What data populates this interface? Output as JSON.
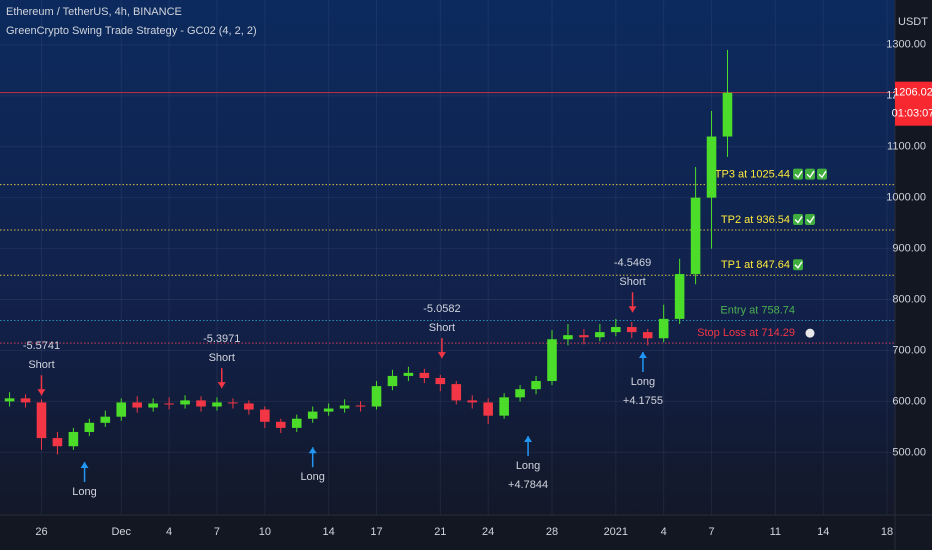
{
  "chart_data": {
    "type": "candlestick",
    "title": "Ethereum / TetherUS, 4h, BINANCE",
    "subtitle": "GreenCrypto Swing Trade Strategy - GC02 (4, 2, 2)",
    "y_axis_label": "USDT",
    "up_color": "#4cdc2a",
    "down_color": "#f23645",
    "grid": true,
    "x": [
      24,
      25,
      26,
      27,
      28,
      29,
      30,
      31,
      32,
      33,
      34,
      35,
      36,
      37,
      38,
      39,
      40,
      41,
      42,
      43,
      44,
      45,
      46,
      47,
      48,
      49,
      50,
      51,
      52,
      53,
      54,
      55,
      56,
      57,
      58,
      59,
      60,
      61,
      62,
      63,
      64,
      65,
      66,
      67,
      68,
      69
    ],
    "open": [
      600,
      606,
      598,
      528,
      512,
      540,
      558,
      570,
      598,
      588,
      596,
      594,
      602,
      590,
      598,
      596,
      584,
      560,
      548,
      566,
      580,
      586,
      592,
      590,
      630,
      650,
      656,
      646,
      634,
      602,
      598,
      572,
      608,
      624,
      640,
      722,
      730,
      726,
      736,
      746,
      736,
      724,
      762,
      850,
      1000,
      1120
    ],
    "high": [
      618,
      614,
      604,
      540,
      548,
      566,
      582,
      606,
      610,
      606,
      608,
      612,
      610,
      608,
      606,
      602,
      590,
      566,
      574,
      590,
      596,
      604,
      600,
      640,
      662,
      668,
      664,
      652,
      640,
      612,
      606,
      616,
      632,
      650,
      740,
      752,
      742,
      752,
      762,
      756,
      742,
      790,
      880,
      1060,
      1170,
      1290
    ],
    "low": [
      590,
      588,
      505,
      496,
      505,
      532,
      550,
      562,
      578,
      580,
      584,
      586,
      580,
      582,
      586,
      574,
      548,
      538,
      540,
      558,
      572,
      578,
      580,
      584,
      622,
      640,
      636,
      620,
      594,
      586,
      556,
      566,
      600,
      614,
      632,
      710,
      712,
      718,
      728,
      724,
      710,
      716,
      752,
      830,
      900,
      1080
    ],
    "close": [
      606,
      598,
      528,
      512,
      540,
      558,
      570,
      598,
      588,
      596,
      594,
      602,
      590,
      598,
      596,
      584,
      560,
      548,
      566,
      580,
      586,
      592,
      590,
      630,
      650,
      656,
      646,
      634,
      602,
      598,
      572,
      608,
      624,
      640,
      722,
      730,
      726,
      736,
      746,
      736,
      724,
      762,
      850,
      1000,
      1120,
      1206
    ],
    "xlim": [
      23.4,
      79.5
    ],
    "xticks": [
      26,
      {
        "value": 31,
        "label": "Dec"
      },
      {
        "value": 34,
        "label": "4"
      },
      {
        "value": 37,
        "label": "7"
      },
      {
        "value": 40,
        "label": "10"
      },
      {
        "value": 44,
        "label": "14"
      },
      {
        "value": 47,
        "label": "17"
      },
      {
        "value": 51,
        "label": "21"
      },
      {
        "value": 54,
        "label": "24"
      },
      {
        "value": 58,
        "label": "28"
      },
      {
        "value": 62,
        "label": "2021"
      },
      {
        "value": 65,
        "label": "4"
      },
      {
        "value": 68,
        "label": "7"
      },
      {
        "value": 72,
        "label": "11"
      },
      {
        "value": 75,
        "label": "14"
      },
      {
        "value": 79,
        "label": "18"
      }
    ],
    "ylim": [
      377,
      1388
    ],
    "yticks": [
      {
        "value": 500,
        "label": "500.00"
      },
      {
        "value": 600,
        "label": "600.00"
      },
      {
        "value": 700,
        "label": "700.00"
      },
      {
        "value": 800,
        "label": "800.00"
      },
      {
        "value": 900,
        "label": "900.00"
      },
      {
        "value": 1000,
        "label": "1000.00"
      },
      {
        "value": 1100,
        "label": "1100.00"
      },
      {
        "value": 1200,
        "label": "1200.00"
      },
      {
        "value": 1300,
        "label": "1300.00"
      }
    ],
    "last_price": {
      "value": 1206.02,
      "label": "1206.02"
    },
    "countdown": "01:03:07",
    "levels": [
      {
        "value": 1025.44,
        "label": "TP3 at 1025.44",
        "line_color": "#d8c24a",
        "text_color": "#ffeb3b",
        "checks": 3
      },
      {
        "value": 936.54,
        "label": "TP2 at 936.54",
        "line_color": "#d8c24a",
        "text_color": "#ffeb3b",
        "checks": 2
      },
      {
        "value": 847.64,
        "label": "TP1 at 847.64",
        "line_color": "#d8c24a",
        "text_color": "#ffeb3b",
        "checks": 1
      },
      {
        "value": 758.74,
        "label": "Entry at 758.74",
        "line_color": "#2a8fb8",
        "text_color": "#4caf50",
        "checks": 0
      },
      {
        "value": 714.29,
        "label": "Stop Loss at 714.29",
        "line_color": "#d0405a",
        "text_color": "#f23645",
        "checks": 0
      }
    ],
    "signals": [
      {
        "x": 26,
        "price": 612,
        "direction": "down",
        "color": "#f23645",
        "text": [
          "-5.5741",
          "Short"
        ]
      },
      {
        "x": 37.3,
        "price": 626,
        "direction": "down",
        "color": "#f23645",
        "text": [
          "-5.3971",
          "Short"
        ]
      },
      {
        "x": 51.1,
        "price": 685,
        "direction": "down",
        "color": "#f23645",
        "text": [
          "-5.0582",
          "Short"
        ]
      },
      {
        "x": 63.05,
        "price": 775,
        "direction": "down",
        "color": "#f23645",
        "text": [
          "-4.5469",
          "Short"
        ]
      },
      {
        "x": 28.7,
        "price": 481,
        "direction": "up",
        "color": "#2196f3",
        "text": [
          "Long"
        ]
      },
      {
        "x": 43.0,
        "price": 510,
        "direction": "up",
        "color": "#2196f3",
        "text": [
          "Long"
        ]
      },
      {
        "x": 56.5,
        "price": 532,
        "direction": "up",
        "color": "#2196f3",
        "text": [
          "Long",
          "+4.7844"
        ]
      },
      {
        "x": 63.7,
        "price": 697,
        "direction": "up",
        "color": "#2196f3",
        "text": [
          "Long",
          "+4.1755"
        ]
      }
    ]
  }
}
